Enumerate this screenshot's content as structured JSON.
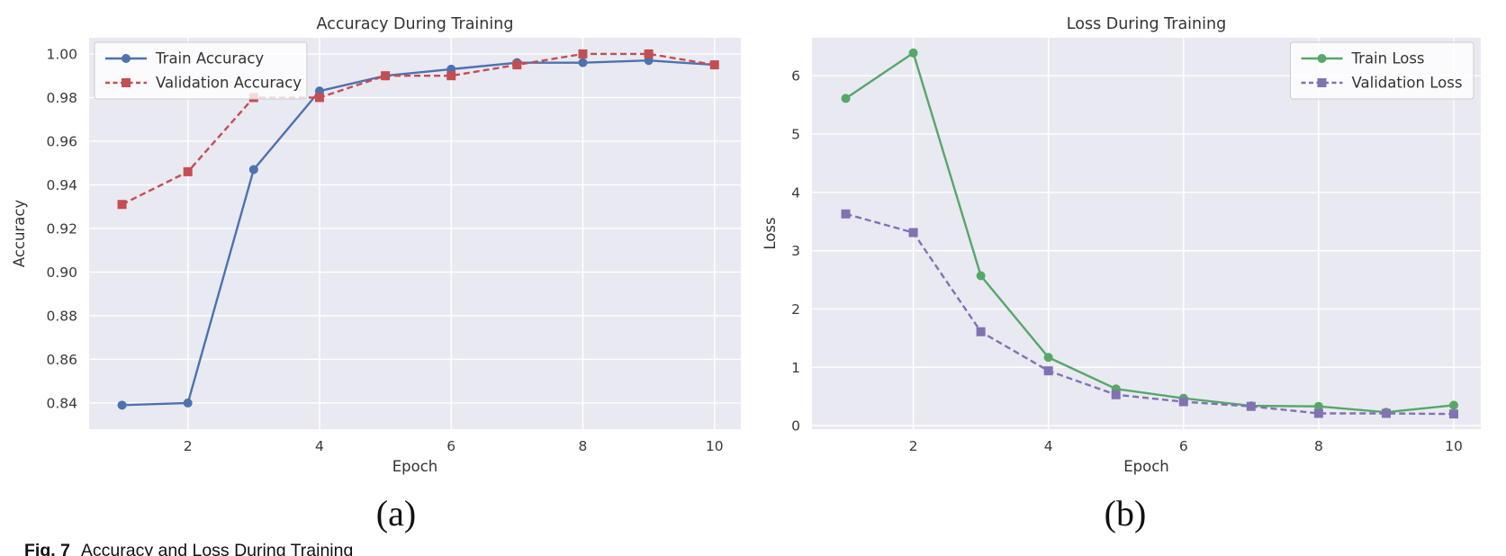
{
  "figure": {
    "panel_a_label": "(a)",
    "panel_b_label": "(b)",
    "caption_prefix": "Fig. 7",
    "caption_text": "Accuracy and Loss During Training"
  },
  "colors": {
    "plot_background": "#e9e9f2",
    "grid": "#ffffff",
    "text": "#333333",
    "tick_text": "#3a3a3a",
    "train_accuracy": "#4C72B0",
    "validation_accuracy": "#C44E52",
    "train_loss": "#55A868",
    "validation_loss": "#8172B3"
  },
  "chart_data": [
    {
      "id": "accuracy",
      "type": "line",
      "title": "Accuracy During Training",
      "xlabel": "Epoch",
      "ylabel": "Accuracy",
      "x": [
        1,
        2,
        3,
        4,
        5,
        6,
        7,
        8,
        9,
        10
      ],
      "xlim": [
        0.5,
        10.4
      ],
      "ylim": [
        0.828,
        1.0074
      ],
      "xticks": [
        2,
        4,
        6,
        8,
        10
      ],
      "xtick_labels": [
        "2",
        "4",
        "6",
        "8",
        "10"
      ],
      "yticks": [
        0.84,
        0.86,
        0.88,
        0.9,
        0.92,
        0.94,
        0.96,
        0.98,
        1.0
      ],
      "ytick_labels": [
        "0.84",
        "0.86",
        "0.88",
        "0.90",
        "0.92",
        "0.94",
        "0.96",
        "0.98",
        "1.00"
      ],
      "grid": true,
      "legend_position": "upper-left",
      "series": [
        {
          "name": "Train Accuracy",
          "color": "#4C72B0",
          "line_style": "solid",
          "marker": "circle",
          "values": [
            0.839,
            0.84,
            0.947,
            0.983,
            0.99,
            0.993,
            0.996,
            0.996,
            0.997,
            0.995
          ]
        },
        {
          "name": "Validation Accuracy",
          "color": "#C44E52",
          "line_style": "dashed",
          "marker": "square",
          "values": [
            0.931,
            0.946,
            0.98,
            0.98,
            0.99,
            0.99,
            0.995,
            1.0,
            1.0,
            0.995
          ]
        }
      ]
    },
    {
      "id": "loss",
      "type": "line",
      "title": "Loss During Training",
      "xlabel": "Epoch",
      "ylabel": "Loss",
      "x": [
        1,
        2,
        3,
        4,
        5,
        6,
        7,
        8,
        9,
        10
      ],
      "xlim": [
        0.5,
        10.4
      ],
      "ylim": [
        -0.06,
        6.65
      ],
      "xticks": [
        2,
        4,
        6,
        8,
        10
      ],
      "xtick_labels": [
        "2",
        "4",
        "6",
        "8",
        "10"
      ],
      "yticks": [
        0,
        1,
        2,
        3,
        4,
        5,
        6
      ],
      "ytick_labels": [
        "0",
        "1",
        "2",
        "3",
        "4",
        "5",
        "6"
      ],
      "grid": true,
      "legend_position": "upper-right",
      "series": [
        {
          "name": "Train Loss",
          "color": "#55A868",
          "line_style": "solid",
          "marker": "circle",
          "values": [
            5.61,
            6.39,
            2.57,
            1.17,
            0.63,
            0.47,
            0.34,
            0.33,
            0.23,
            0.35
          ]
        },
        {
          "name": "Validation Loss",
          "color": "#8172B3",
          "line_style": "dashed",
          "marker": "square",
          "values": [
            3.63,
            3.31,
            1.61,
            0.94,
            0.53,
            0.41,
            0.33,
            0.21,
            0.21,
            0.2
          ]
        }
      ]
    }
  ]
}
